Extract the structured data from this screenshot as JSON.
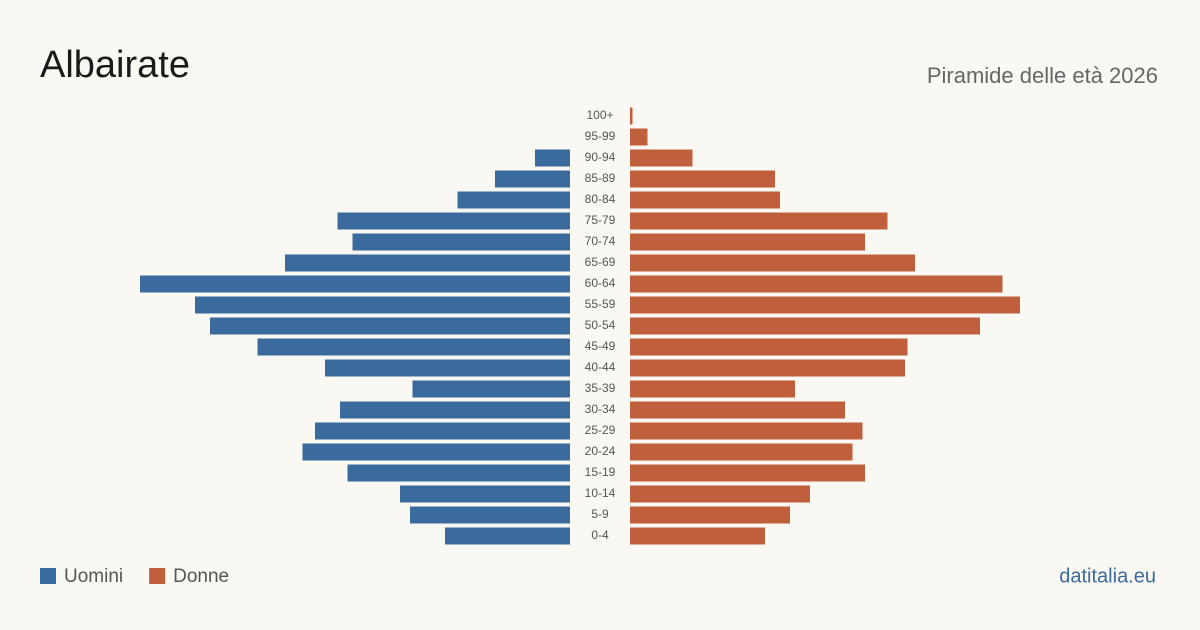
{
  "chart_data": {
    "type": "pyramid",
    "title": "Albairate",
    "subtitle": "Piramide delle età 2026",
    "source": "datitalia.eu",
    "categories": [
      "100+",
      "95-99",
      "90-94",
      "85-89",
      "80-84",
      "75-79",
      "70-74",
      "65-69",
      "60-64",
      "55-59",
      "50-54",
      "45-49",
      "40-44",
      "35-39",
      "30-34",
      "25-29",
      "20-24",
      "15-19",
      "10-14",
      "5-9",
      "0-4"
    ],
    "series": [
      {
        "name": "Uomini",
        "color": "#3b6a9c",
        "values": [
          0,
          0,
          14,
          30,
          45,
          93,
          87,
          114,
          172,
          150,
          144,
          125,
          98,
          63,
          92,
          102,
          107,
          89,
          68,
          64,
          50
        ]
      },
      {
        "name": "Donne",
        "color": "#bf5f3c",
        "values": [
          1,
          7,
          25,
          58,
          60,
          103,
          94,
          114,
          149,
          156,
          140,
          111,
          110,
          66,
          86,
          93,
          89,
          94,
          72,
          64,
          54
        ]
      }
    ]
  }
}
